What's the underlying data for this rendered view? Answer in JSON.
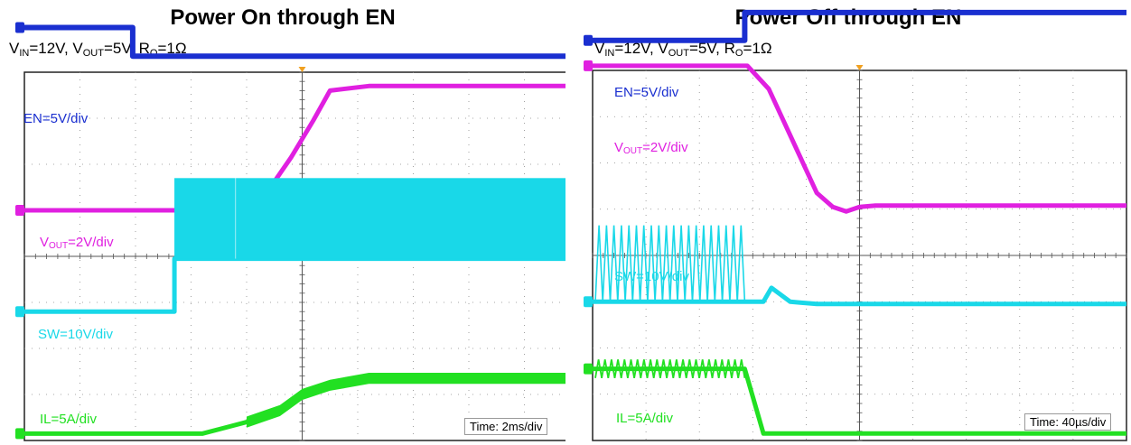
{
  "panels": [
    {
      "title": "Power On through EN",
      "conditions": {
        "vin": "=12V, ",
        "vout": "=5V, ",
        "ro": "=1Ω"
      },
      "time_label": "Time: 2ms/div",
      "labels": {
        "en": "EN=5V/div",
        "vout_pre": "V",
        "vout_sub": "OUT",
        "vout_post": "=2V/div",
        "sw": "SW=10V/div",
        "il": "IL=5A/div"
      }
    },
    {
      "title": "Power Off through EN",
      "conditions": {
        "vin": "=12V, ",
        "vout": "=5V, ",
        "ro": "=1Ω"
      },
      "time_label": "Time: 40µs/div",
      "labels": {
        "en": "EN=5V/div",
        "vout_pre": "V",
        "vout_sub": "OUT",
        "vout_post": "=2V/div",
        "sw": "SW=10V/div",
        "il": "IL=5A/div"
      }
    }
  ],
  "colors": {
    "en": "#1a2fd0",
    "vout": "#e020e0",
    "sw": "#19d8e8",
    "il": "#22e022",
    "grid": "#8a8a8a",
    "marker": "#f0a020"
  },
  "chart_data": [
    {
      "type": "line",
      "title": "Power On through EN",
      "x_unit": "div",
      "xlim": [
        0,
        10
      ],
      "time_per_div": "2ms",
      "series": [
        {
          "name": "EN",
          "scale": "5V/div",
          "color": "#1a2fd0",
          "points": [
            [
              0,
              4.97
            ],
            [
              1.95,
              4.97
            ],
            [
              1.95,
              4.35
            ],
            [
              10,
              4.35
            ]
          ]
        },
        {
          "name": "VOUT",
          "scale": "2V/div",
          "color": "#e020e0",
          "points": [
            [
              0,
              1.0
            ],
            [
              2.7,
              1.0
            ],
            [
              3.5,
              1.15
            ],
            [
              4.0,
              1.3
            ],
            [
              4.4,
              1.45
            ],
            [
              4.8,
              2.15
            ],
            [
              5.2,
              2.95
            ],
            [
              5.5,
              3.6
            ],
            [
              6.2,
              3.7
            ],
            [
              10,
              3.7
            ]
          ]
        },
        {
          "name": "SW",
          "scale": "10V/div",
          "color": "#19d8e8",
          "points": [
            [
              0,
              -1.2
            ],
            [
              2.7,
              -1.2
            ],
            [
              2.7,
              -0.05
            ],
            [
              10,
              -0.05
            ]
          ]
        },
        {
          "name": "IL",
          "scale": "5A/div",
          "color": "#22e022",
          "points": [
            [
              0,
              -3.85
            ],
            [
              3.2,
              -3.85
            ],
            [
              4.0,
              -3.6
            ],
            [
              4.6,
              -3.35
            ],
            [
              5.0,
              -3.0
            ],
            [
              5.5,
              -2.8
            ],
            [
              6.2,
              -2.65
            ],
            [
              10,
              -2.65
            ]
          ]
        }
      ]
    },
    {
      "type": "line",
      "title": "Power Off through EN",
      "x_unit": "div",
      "xlim": [
        0,
        10
      ],
      "time_per_div": "40µs",
      "series": [
        {
          "name": "EN",
          "scale": "5V/div",
          "color": "#1a2fd0",
          "points": [
            [
              0,
              4.65
            ],
            [
              2.85,
              4.65
            ],
            [
              2.85,
              5.25
            ],
            [
              10,
              5.25
            ]
          ]
        },
        {
          "name": "VOUT",
          "scale": "2V/div",
          "color": "#e020e0",
          "points": [
            [
              0,
              4.1
            ],
            [
              2.9,
              4.1
            ],
            [
              3.3,
              3.6
            ],
            [
              3.7,
              2.6
            ],
            [
              4.2,
              1.35
            ],
            [
              4.5,
              1.05
            ],
            [
              4.75,
              0.95
            ],
            [
              5.0,
              1.05
            ],
            [
              5.3,
              1.08
            ],
            [
              10,
              1.08
            ]
          ]
        },
        {
          "name": "SW",
          "scale": "10V/div",
          "color": "#19d8e8",
          "points": [
            [
              0,
              -1.0
            ],
            [
              2.85,
              -1.0
            ],
            [
              3.2,
              -1.0
            ],
            [
              3.35,
              -0.7
            ],
            [
              3.7,
              -1.0
            ],
            [
              4.2,
              -1.05
            ],
            [
              10,
              -1.05
            ]
          ]
        },
        {
          "name": "IL",
          "scale": "5A/div",
          "color": "#22e022",
          "points": [
            [
              0,
              -2.45
            ],
            [
              2.85,
              -2.45
            ],
            [
              3.2,
              -3.85
            ],
            [
              10,
              -3.85
            ]
          ]
        }
      ]
    }
  ]
}
